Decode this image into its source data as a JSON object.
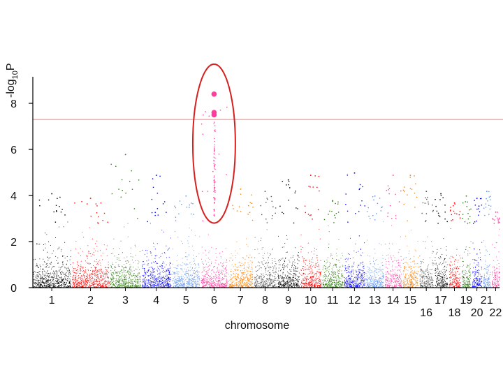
{
  "chart_data": {
    "type": "scatter",
    "subtype": "manhattan",
    "title": "",
    "xlabel": "chromosome",
    "ylabel": "-log10P",
    "ylabel_parts": {
      "base": "-log",
      "sub": "10",
      "tail": "P"
    },
    "ylim": [
      0,
      8.6
    ],
    "yticks": [
      0,
      2,
      4,
      6,
      8
    ],
    "grid": false,
    "legend": "none",
    "significance_threshold": 7.3,
    "threshold_color": "#f28080",
    "highlight": {
      "chromosome": "6",
      "shape": "ellipse",
      "color": "#d62020",
      "ylim": [
        2.8,
        9.7
      ]
    },
    "chromosomes": [
      {
        "label": "1",
        "color": "#000000",
        "max": 4.1
      },
      {
        "label": "2",
        "color": "#ff0000",
        "max": 3.9
      },
      {
        "label": "3",
        "color": "#2e7d10",
        "max": 5.8
      },
      {
        "label": "4",
        "color": "#0000ff",
        "max": 4.9
      },
      {
        "label": "5",
        "color": "#6495ed",
        "max": 4.0
      },
      {
        "label": "6",
        "color": "#ff3d9e",
        "max": 8.4
      },
      {
        "label": "7",
        "color": "#ff7f00",
        "max": 4.3
      },
      {
        "label": "8",
        "color": "#555555",
        "max": 4.2
      },
      {
        "label": "9",
        "color": "#000000",
        "max": 4.7
      },
      {
        "label": "10",
        "color": "#ff0000",
        "max": 4.9
      },
      {
        "label": "11",
        "color": "#2e7d10",
        "max": 3.8
      },
      {
        "label": "12",
        "color": "#0000ff",
        "max": 5.0
      },
      {
        "label": "13",
        "color": "#6495ed",
        "max": 4.0
      },
      {
        "label": "14",
        "color": "#ff3d9e",
        "max": 4.9
      },
      {
        "label": "15",
        "color": "#ff7f00",
        "max": 4.9
      },
      {
        "label": "16",
        "color": "#555555",
        "max": 4.2
      },
      {
        "label": "17",
        "color": "#000000",
        "max": 4.1
      },
      {
        "label": "18",
        "color": "#ff0000",
        "max": 3.7
      },
      {
        "label": "19",
        "color": "#2e7d10",
        "max": 4.0
      },
      {
        "label": "20",
        "color": "#0000ff",
        "max": 3.9
      },
      {
        "label": "21",
        "color": "#6495ed",
        "max": 4.2
      },
      {
        "label": "22",
        "color": "#ff3d9e",
        "max": 3.3
      }
    ],
    "top_hits": [
      {
        "chromosome": "6",
        "y": 8.4
      },
      {
        "chromosome": "6",
        "y": 7.6
      },
      {
        "chromosome": "6",
        "y": 7.5
      }
    ]
  }
}
